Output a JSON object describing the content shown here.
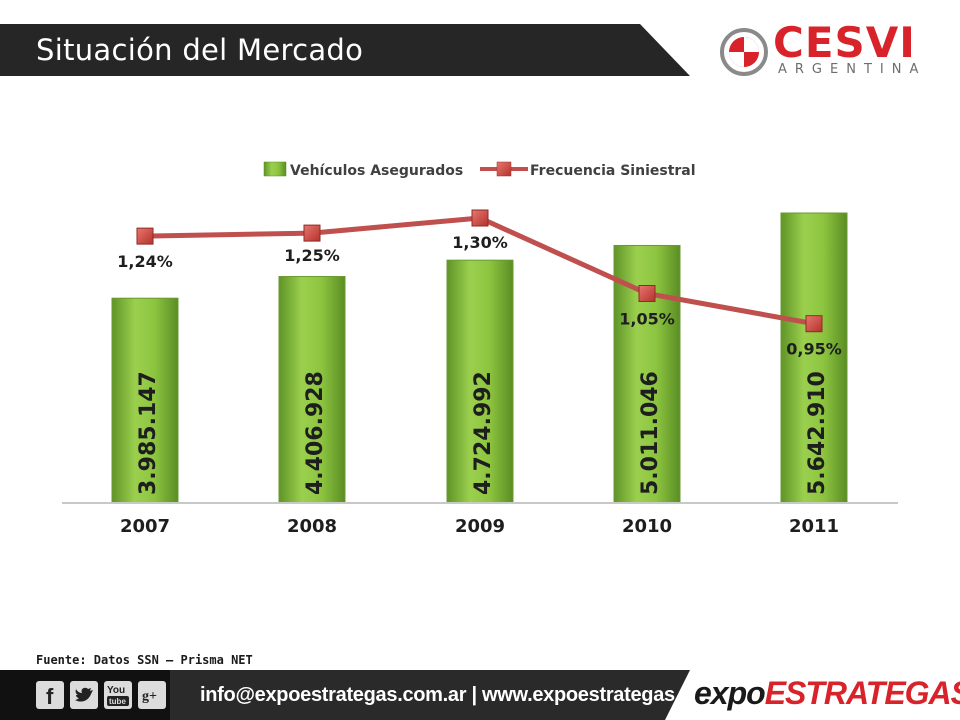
{
  "header": {
    "title": "Situación del Mercado"
  },
  "logo": {
    "name": "CESVI",
    "subtitle": "ARGENTINA"
  },
  "chart_data": {
    "type": "bar",
    "categories": [
      "2007",
      "2008",
      "2009",
      "2010",
      "2011"
    ],
    "series": [
      {
        "name": "Vehículos Asegurados",
        "kind": "bar",
        "values": [
          3985147,
          4406928,
          4724992,
          5011046,
          5642910
        ],
        "labels": [
          "3.985.147",
          "4.406.928",
          "4.724.992",
          "5.011.046",
          "5.642.910"
        ],
        "color": "#7ab735"
      },
      {
        "name": "Frecuencia Siniestral",
        "kind": "line",
        "values": [
          1.24,
          1.25,
          1.3,
          1.05,
          0.95
        ],
        "labels": [
          "1,24%",
          "1,25%",
          "1,30%",
          "1,05%",
          "0,95%"
        ],
        "color": "#c0504d"
      }
    ],
    "legend": "top",
    "grid": false
  },
  "source": "Fuente: Datos SSN – Prisma NET",
  "footer": {
    "contact": "info@expoestrategas.com.ar | www.expoestrategas.com.ar",
    "brand_a": "expo",
    "brand_b": "ESTRATEGAS",
    "social": [
      "facebook-icon",
      "twitter-icon",
      "youtube-icon",
      "google-plus-icon"
    ]
  }
}
